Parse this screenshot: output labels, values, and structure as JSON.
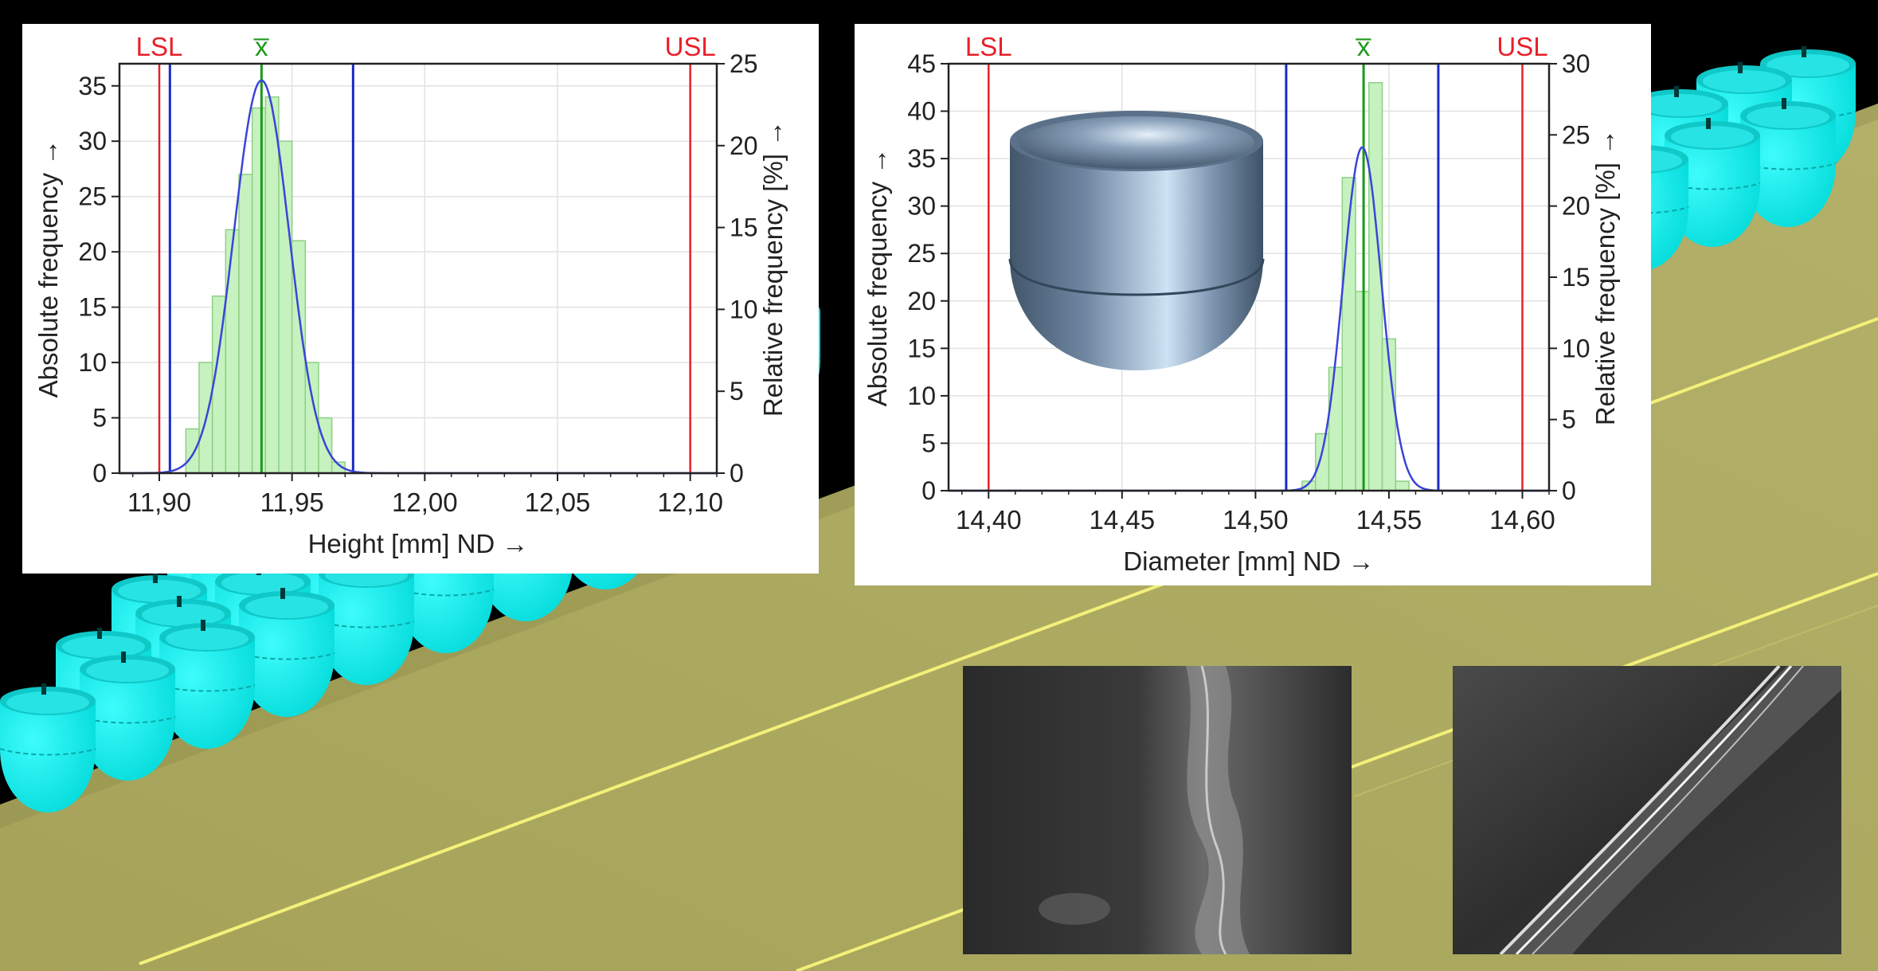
{
  "colors": {
    "spec_limit": "#e8202a",
    "tolerance_limit": "#1c28c8",
    "mean": "#1a9a1a",
    "bar_fill": "#c6f2c0",
    "bar_stroke": "#8fcf86",
    "nd_curve": "#3a44d8",
    "grid": "#e2e2e2",
    "parts": "#00f2f2",
    "plate": "#a8a55e"
  },
  "chart_data": [
    {
      "type": "bar",
      "id": "height",
      "title": "",
      "xlabel": "Height [mm]  ND →",
      "ylabel": "Absolute frequency →",
      "y2label": "Relative frequency  [%]  →",
      "xlim": [
        11.885,
        12.11
      ],
      "xticks": [
        11.9,
        11.95,
        12.0,
        12.05,
        12.1
      ],
      "xtick_labels": [
        "11,90",
        "11,95",
        "12,00",
        "12,05",
        "12,10"
      ],
      "ylim": [
        0,
        37
      ],
      "yticks": [
        0,
        5,
        10,
        15,
        20,
        25,
        30,
        35
      ],
      "y2lim": [
        0,
        25
      ],
      "y2ticks": [
        0,
        5,
        10,
        15,
        20,
        25
      ],
      "grid": true,
      "bin_width": 0.005,
      "bins": [
        {
          "x0": 11.91,
          "value": 4
        },
        {
          "x0": 11.915,
          "value": 10
        },
        {
          "x0": 11.92,
          "value": 16
        },
        {
          "x0": 11.925,
          "value": 22
        },
        {
          "x0": 11.93,
          "value": 27
        },
        {
          "x0": 11.935,
          "value": 33
        },
        {
          "x0": 11.94,
          "value": 34
        },
        {
          "x0": 11.945,
          "value": 30
        },
        {
          "x0": 11.95,
          "value": 21
        },
        {
          "x0": 11.955,
          "value": 10
        },
        {
          "x0": 11.96,
          "value": 5
        },
        {
          "x0": 11.965,
          "value": 1
        }
      ],
      "normal_curve": {
        "mean": 11.9385,
        "sd": 0.0105,
        "peak": 35.5
      },
      "markers": [
        {
          "label": "LSL",
          "x": 11.9,
          "kind": "spec_limit"
        },
        {
          "label": "x̅",
          "x": 11.9385,
          "kind": "mean"
        },
        {
          "label": "USL",
          "x": 12.1,
          "kind": "spec_limit"
        }
      ],
      "tolerance_lines": [
        11.904,
        11.973
      ]
    },
    {
      "type": "bar",
      "id": "diameter",
      "title": "",
      "xlabel": "Diameter [mm]  ND →",
      "ylabel": "Absolute frequency →",
      "y2label": "Relative frequency  [%]  →",
      "xlim": [
        14.385,
        14.61
      ],
      "xticks": [
        14.4,
        14.45,
        14.5,
        14.55,
        14.6
      ],
      "xtick_labels": [
        "14,40",
        "14,45",
        "14,50",
        "14,55",
        "14,60"
      ],
      "ylim": [
        0,
        45
      ],
      "yticks": [
        0,
        5,
        10,
        15,
        20,
        25,
        30,
        35,
        40,
        45
      ],
      "y2lim": [
        0,
        30
      ],
      "y2ticks": [
        0,
        5,
        10,
        15,
        20,
        25,
        30
      ],
      "grid": true,
      "bin_width": 0.005,
      "bins": [
        {
          "x0": 14.5175,
          "value": 1
        },
        {
          "x0": 14.5225,
          "value": 6
        },
        {
          "x0": 14.5275,
          "value": 13
        },
        {
          "x0": 14.5325,
          "value": 33
        },
        {
          "x0": 14.5375,
          "value": 21
        },
        {
          "x0": 14.5425,
          "value": 43
        },
        {
          "x0": 14.5475,
          "value": 16
        },
        {
          "x0": 14.5525,
          "value": 1
        }
      ],
      "normal_curve": {
        "mean": 14.54,
        "sd": 0.0072,
        "peak": 36.2
      },
      "markers": [
        {
          "label": "LSL",
          "x": 14.4,
          "kind": "spec_limit"
        },
        {
          "label": "x̅",
          "x": 14.5405,
          "kind": "mean"
        },
        {
          "label": "USL",
          "x": 14.6,
          "kind": "spec_limit"
        }
      ],
      "tolerance_lines": [
        14.5115,
        14.5685
      ]
    }
  ]
}
